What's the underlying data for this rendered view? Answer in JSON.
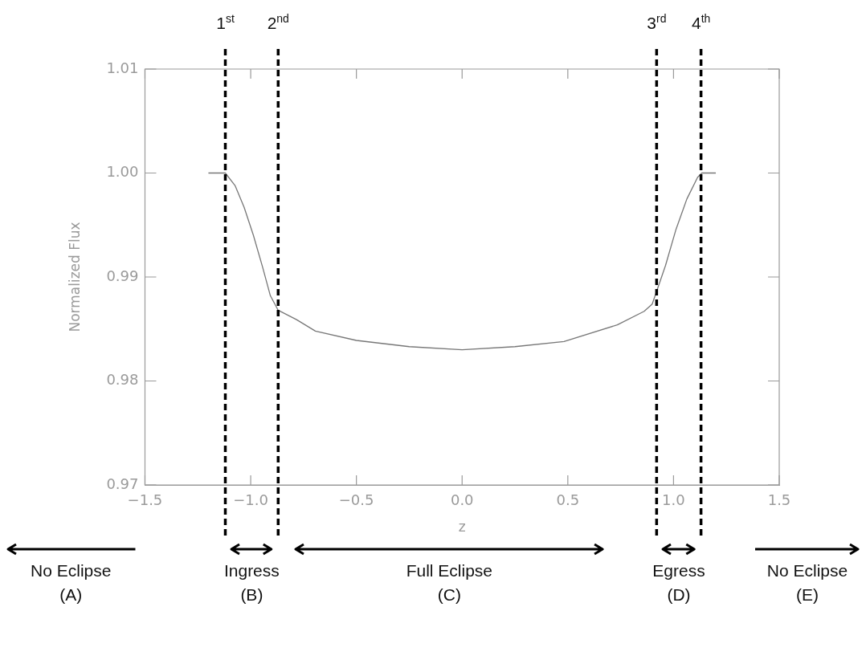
{
  "chart_data": {
    "type": "line",
    "xlabel": "z",
    "ylabel": "Normalized Flux",
    "x": [
      -1.2,
      -1.12,
      -1.074,
      -1.031,
      -0.987,
      -0.943,
      -0.907,
      -0.87,
      -0.783,
      -0.694,
      -0.5,
      -0.25,
      0,
      0.25,
      0.482,
      0.734,
      0.861,
      0.899,
      0.918,
      0.962,
      1.012,
      1.063,
      1.114,
      1.134,
      1.2
    ],
    "series": [
      {
        "color": "#777777",
        "values": [
          1.0,
          1.0,
          0.9988,
          0.9967,
          0.994,
          0.9909,
          0.9882,
          0.9868,
          0.9859,
          0.9848,
          0.9839,
          0.9833,
          0.983,
          0.9833,
          0.9838,
          0.9854,
          0.9867,
          0.9874,
          0.9885,
          0.9911,
          0.9946,
          0.9975,
          0.9996,
          1.0,
          1.0
        ]
      }
    ],
    "xlim": [
      -1.5,
      1.5
    ],
    "xticks": [
      {
        "value": -1.5,
        "label": "−1.5"
      },
      {
        "value": -1,
        "label": "−1.0"
      },
      {
        "value": -0.5,
        "label": "−0.5"
      },
      {
        "value": 0,
        "label": "0.0"
      },
      0.5,
      {
        "value": 1,
        "label": "1.0"
      },
      1.5
    ],
    "ylim": [
      0.97,
      1.01
    ],
    "yticks": [
      0.97,
      0.98,
      0.99,
      {
        "value": 1,
        "label": "1.00"
      },
      1.01
    ],
    "grid": false,
    "legend": false,
    "marker": "none",
    "line_style": "solid",
    "ref_lines": [
      {
        "axis": "x",
        "value": -1.12,
        "label": "1$^{st}$",
        "color": "#000000",
        "line_style": "dashed"
      },
      {
        "axis": "x",
        "value": -0.87,
        "label": "2$^{nd}$",
        "color": "#000000",
        "line_style": "dashed"
      },
      {
        "axis": "x",
        "value": 0.92,
        "label": "3$^{rd}$",
        "color": "#000000",
        "line_style": "dashed"
      },
      {
        "axis": "x",
        "value": 1.13,
        "label": "4$^{th}$",
        "color": "#000000",
        "line_style": "dashed"
      }
    ],
    "annotations": [
      "No Eclipse\n(A)",
      "Ingress\n(B)",
      "Full Eclipse\n(C)",
      "Egress\n(D)",
      "No Eclipse\n(E)"
    ]
  }
}
